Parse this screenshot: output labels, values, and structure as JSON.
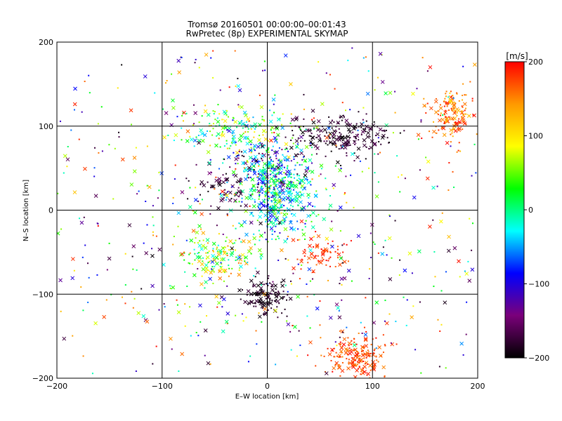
{
  "chart_data": {
    "type": "scatter",
    "title_line1": "Tromsø 20160501 00:00:00–00:01:43",
    "title_line2": "RwPretec (8p) EXPERIMENTAL SKYMAP",
    "xlabel": "E–W location [km]",
    "ylabel": "N–S location [km]",
    "xlim": [
      -200,
      200
    ],
    "ylim": [
      -200,
      200
    ],
    "xticks": [
      -200,
      -100,
      0,
      100,
      200
    ],
    "yticks": [
      -200,
      -100,
      0,
      100,
      200
    ],
    "xtick_labels": [
      "−200",
      "−100",
      "0",
      "100",
      "200"
    ],
    "ytick_labels": [
      "−200",
      "−100",
      "0",
      "100",
      "200"
    ],
    "grid": true,
    "marker_types": [
      "x",
      "dot"
    ],
    "colorbar": {
      "label": "[m/s]",
      "range": [
        -200,
        200
      ],
      "ticks": [
        200,
        100,
        0,
        -100,
        -200
      ],
      "tick_labels": [
        "200",
        "100",
        "0",
        "−100",
        "−200"
      ],
      "stops": [
        "#000000",
        "#7a007a",
        "#0000ff",
        "#00ffff",
        "#00ff00",
        "#ffff00",
        "#ff9900",
        "#ff0000"
      ]
    },
    "clusters": [
      {
        "x": 10,
        "y": 20,
        "sx": 18,
        "sy": 25,
        "n": 420,
        "vel": [
          -100,
          60
        ]
      },
      {
        "x": 70,
        "y": 90,
        "sx": 22,
        "sy": 12,
        "n": 200,
        "vel": [
          -200,
          -160
        ]
      },
      {
        "x": 0,
        "y": -105,
        "sx": 12,
        "sy": 10,
        "n": 120,
        "vel": [
          -200,
          -170
        ]
      },
      {
        "x": 85,
        "y": -175,
        "sx": 15,
        "sy": 15,
        "n": 200,
        "vel": [
          150,
          200
        ]
      },
      {
        "x": 175,
        "y": 115,
        "sx": 12,
        "sy": 18,
        "n": 150,
        "vel": [
          120,
          200
        ]
      },
      {
        "x": -40,
        "y": 20,
        "sx": 15,
        "sy": 15,
        "n": 60,
        "vel": [
          -200,
          -150
        ]
      },
      {
        "x": -25,
        "y": 90,
        "sx": 28,
        "sy": 18,
        "n": 160,
        "vel": [
          -50,
          120
        ]
      },
      {
        "x": -50,
        "y": -55,
        "sx": 20,
        "sy": 15,
        "n": 140,
        "vel": [
          -40,
          160
        ]
      },
      {
        "x": 50,
        "y": -55,
        "sx": 12,
        "sy": 12,
        "n": 70,
        "vel": [
          160,
          200
        ]
      },
      {
        "x": 0,
        "y": 55,
        "sx": 18,
        "sy": 15,
        "n": 140,
        "vel": [
          -200,
          0
        ]
      },
      {
        "x": 0,
        "y": 0,
        "sx": 130,
        "sy": 130,
        "n": 800,
        "vel": [
          -200,
          200
        ]
      }
    ]
  }
}
